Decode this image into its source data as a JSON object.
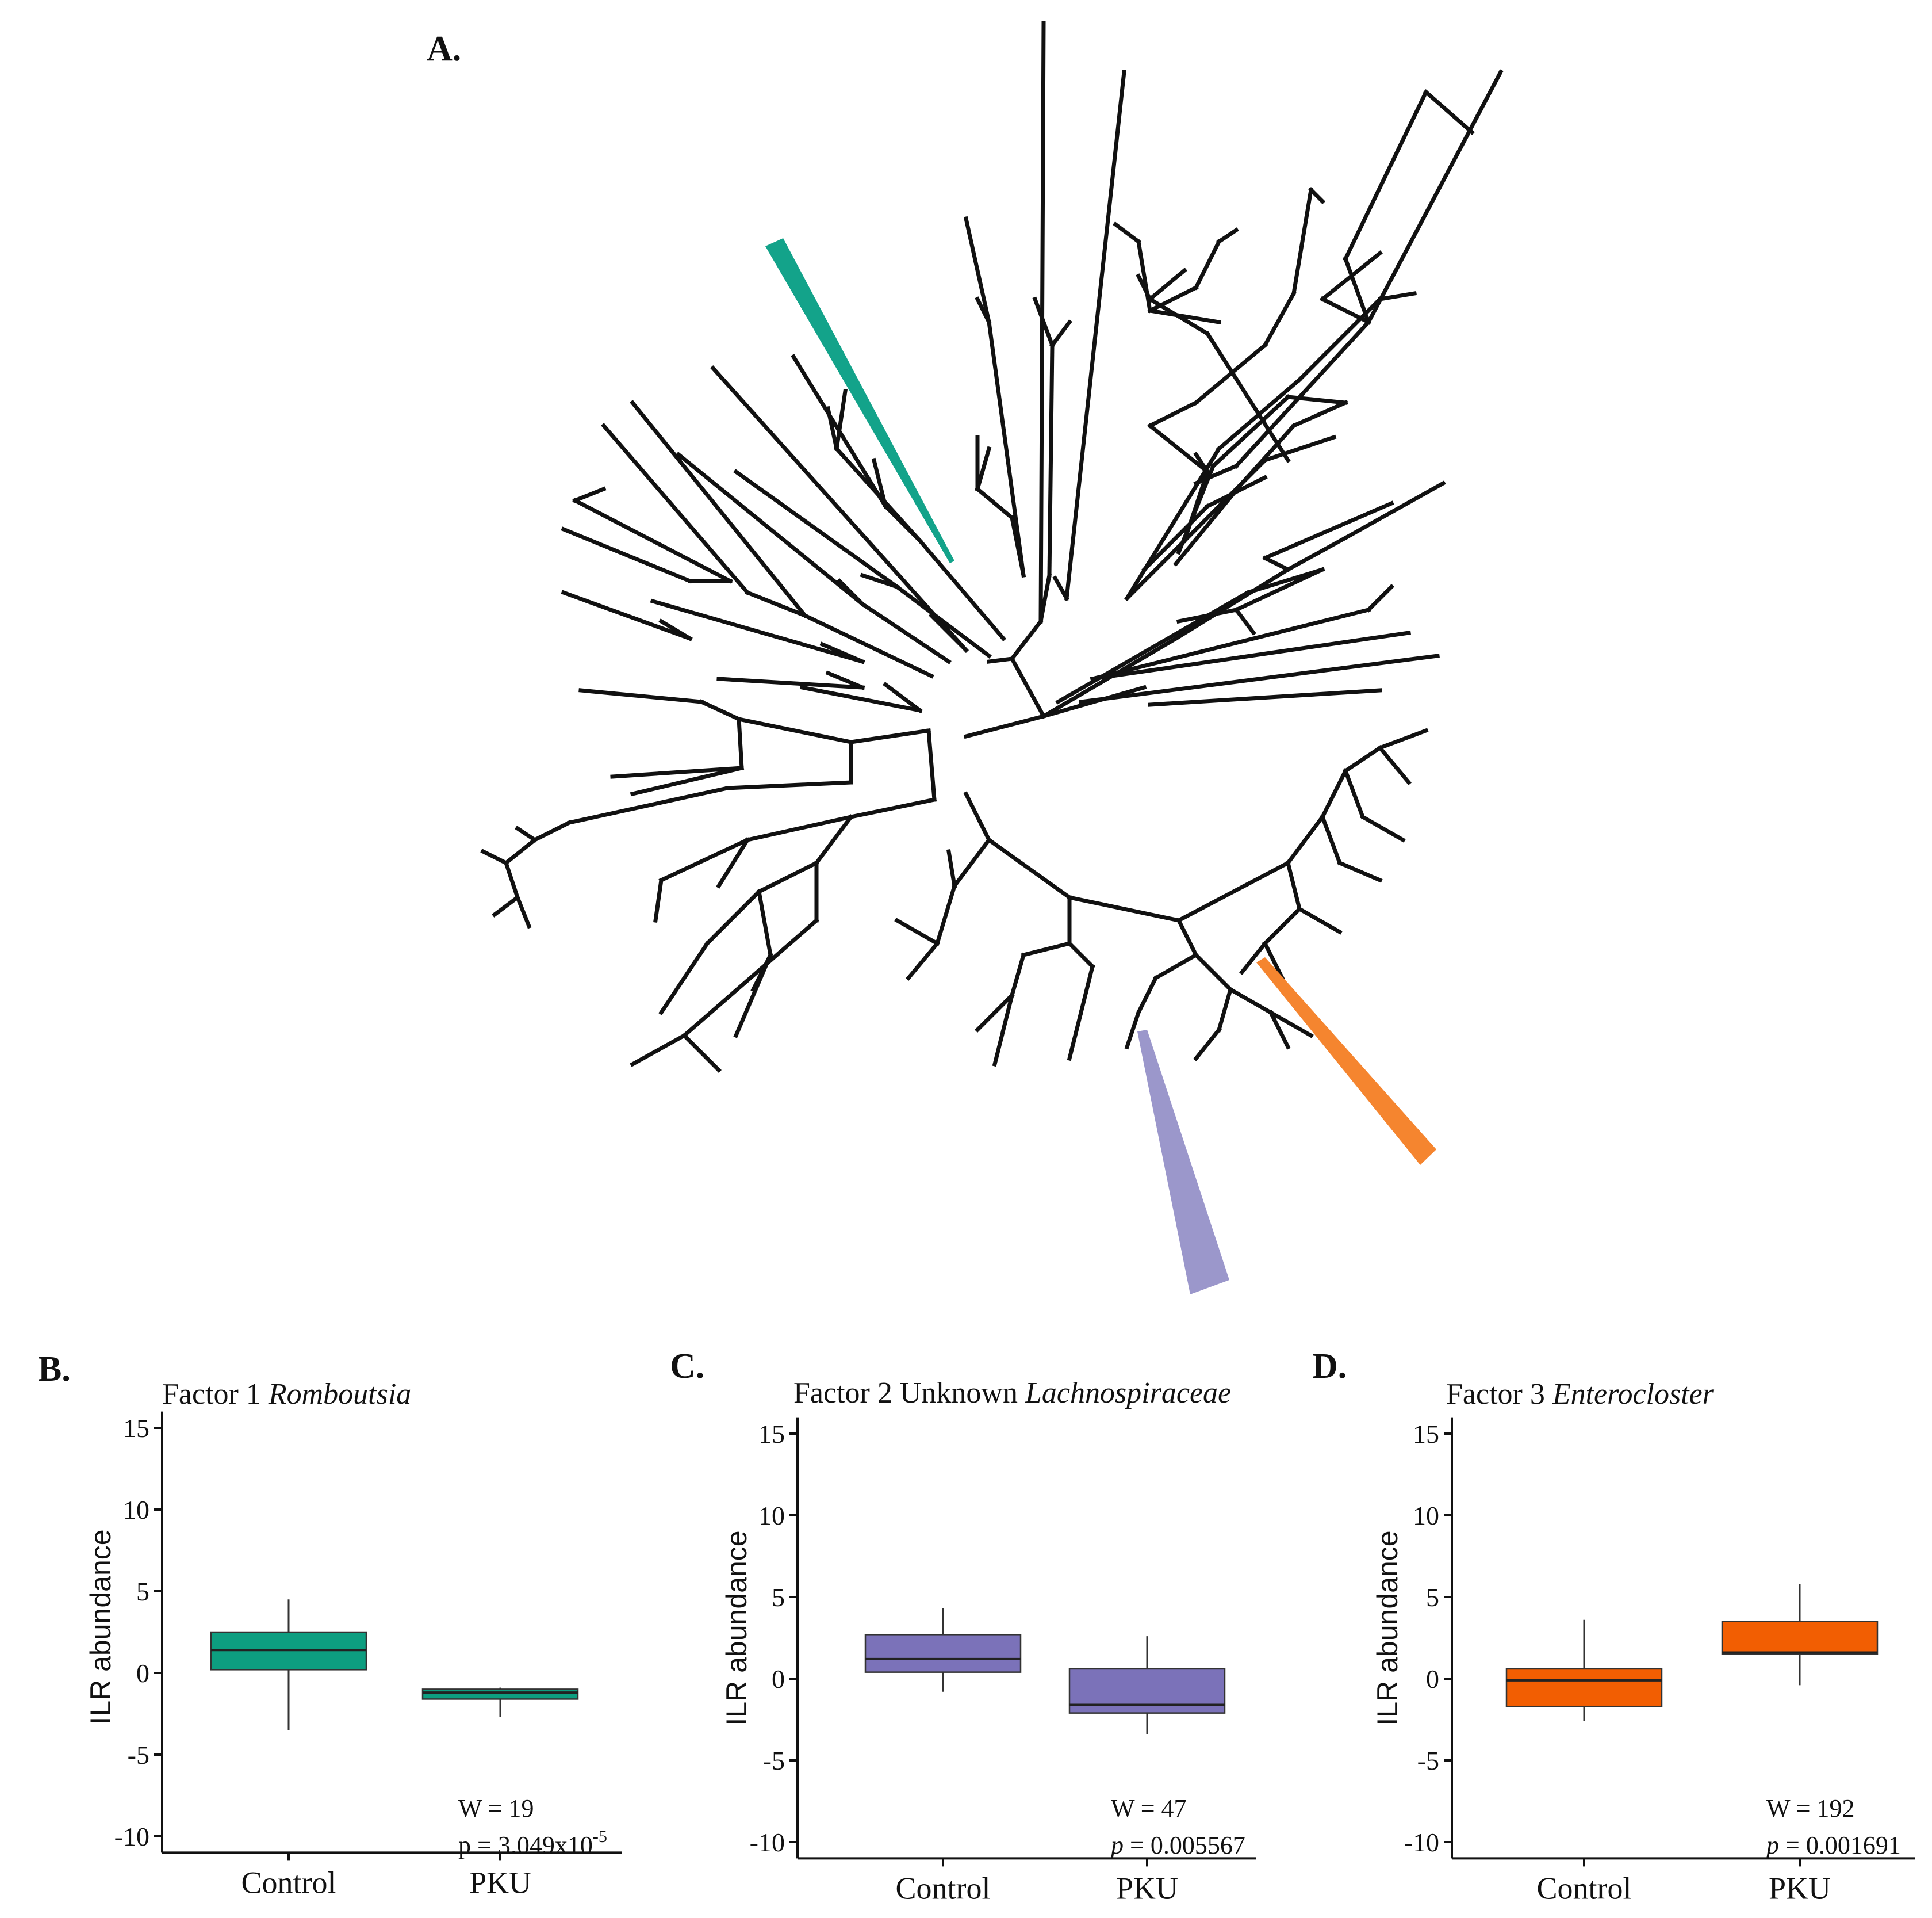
{
  "figure": {
    "panel_a": {
      "letter": "A.",
      "type": "phylogenetic tree (circular, unrooted)",
      "highlighted_clades": [
        {
          "factor": "Factor 1",
          "taxon": "Romboutsia",
          "color": "#13a38a"
        },
        {
          "factor": "Factor 2",
          "taxon": "Unknown Lachnospiraceae",
          "color": "#9b97cb"
        },
        {
          "factor": "Factor 3",
          "taxon": "Enterocloster",
          "color": "#f5852f"
        }
      ]
    }
  },
  "chart_data": [
    {
      "type": "box",
      "panel": "B.",
      "title_prefix": "Factor 1",
      "title_taxon": "Romboutsia",
      "ylabel": "ILR abundance",
      "ylim": [
        -11,
        16
      ],
      "yticks": [
        15,
        10,
        5,
        0,
        -5,
        -10
      ],
      "ytick_labels": [
        "15",
        "10",
        "5",
        "0",
        "-5",
        "-10"
      ],
      "categories": [
        "Control",
        "PKU"
      ],
      "color": "#0d9e80",
      "boxes": [
        {
          "group": "Control",
          "min": -3.5,
          "q1": 0.2,
          "median": 1.4,
          "q3": 2.5,
          "max": 4.5
        },
        {
          "group": "PKU",
          "min": -2.7,
          "q1": -1.6,
          "median": -1.2,
          "q3": -1.0,
          "max": -0.9
        }
      ],
      "stat_w": "W = 19",
      "stat_p_prefix": "p = 3.049x10",
      "stat_p_exp": "-5"
    },
    {
      "type": "box",
      "panel": "C.",
      "title_prefix": "Factor 2 Unknown",
      "title_taxon": "Lachnospiraceae",
      "ylabel": "ILR abundance",
      "ylim": [
        -11,
        16
      ],
      "yticks": [
        15,
        10,
        5,
        0,
        -5,
        -10
      ],
      "ytick_labels": [
        "15",
        "10",
        "5",
        "0",
        "-5",
        "-10"
      ],
      "categories": [
        "Control",
        "PKU"
      ],
      "color": "#7b72b9",
      "boxes": [
        {
          "group": "Control",
          "min": -0.8,
          "q1": 0.4,
          "median": 1.2,
          "q3": 2.7,
          "max": 4.3
        },
        {
          "group": "PKU",
          "min": -3.4,
          "q1": -2.1,
          "median": -1.6,
          "q3": 0.6,
          "max": 2.6
        }
      ],
      "stat_w": "W = 47",
      "stat_p_italic": "p",
      "stat_p_rest": " = 0.005567"
    },
    {
      "type": "box",
      "panel": "D.",
      "title_prefix": "Factor 3",
      "title_taxon": "Enterocloster",
      "ylabel": "ILR abundance",
      "ylim": [
        -11,
        16
      ],
      "yticks": [
        15,
        10,
        5,
        0,
        -5,
        -10
      ],
      "ytick_labels": [
        "15",
        "10",
        "5",
        "0",
        "-5",
        "-10"
      ],
      "categories": [
        "Control",
        "PKU"
      ],
      "color": "#f25e02",
      "boxes": [
        {
          "group": "Control",
          "min": -2.6,
          "q1": -1.7,
          "median": -0.1,
          "q3": 0.6,
          "max": 3.6
        },
        {
          "group": "PKU",
          "min": -0.4,
          "q1": 1.5,
          "median": 1.6,
          "q3": 3.5,
          "max": 5.8
        }
      ],
      "stat_w": "W = 192",
      "stat_p_italic": "p",
      "stat_p_rest": " = 0.001691"
    }
  ]
}
